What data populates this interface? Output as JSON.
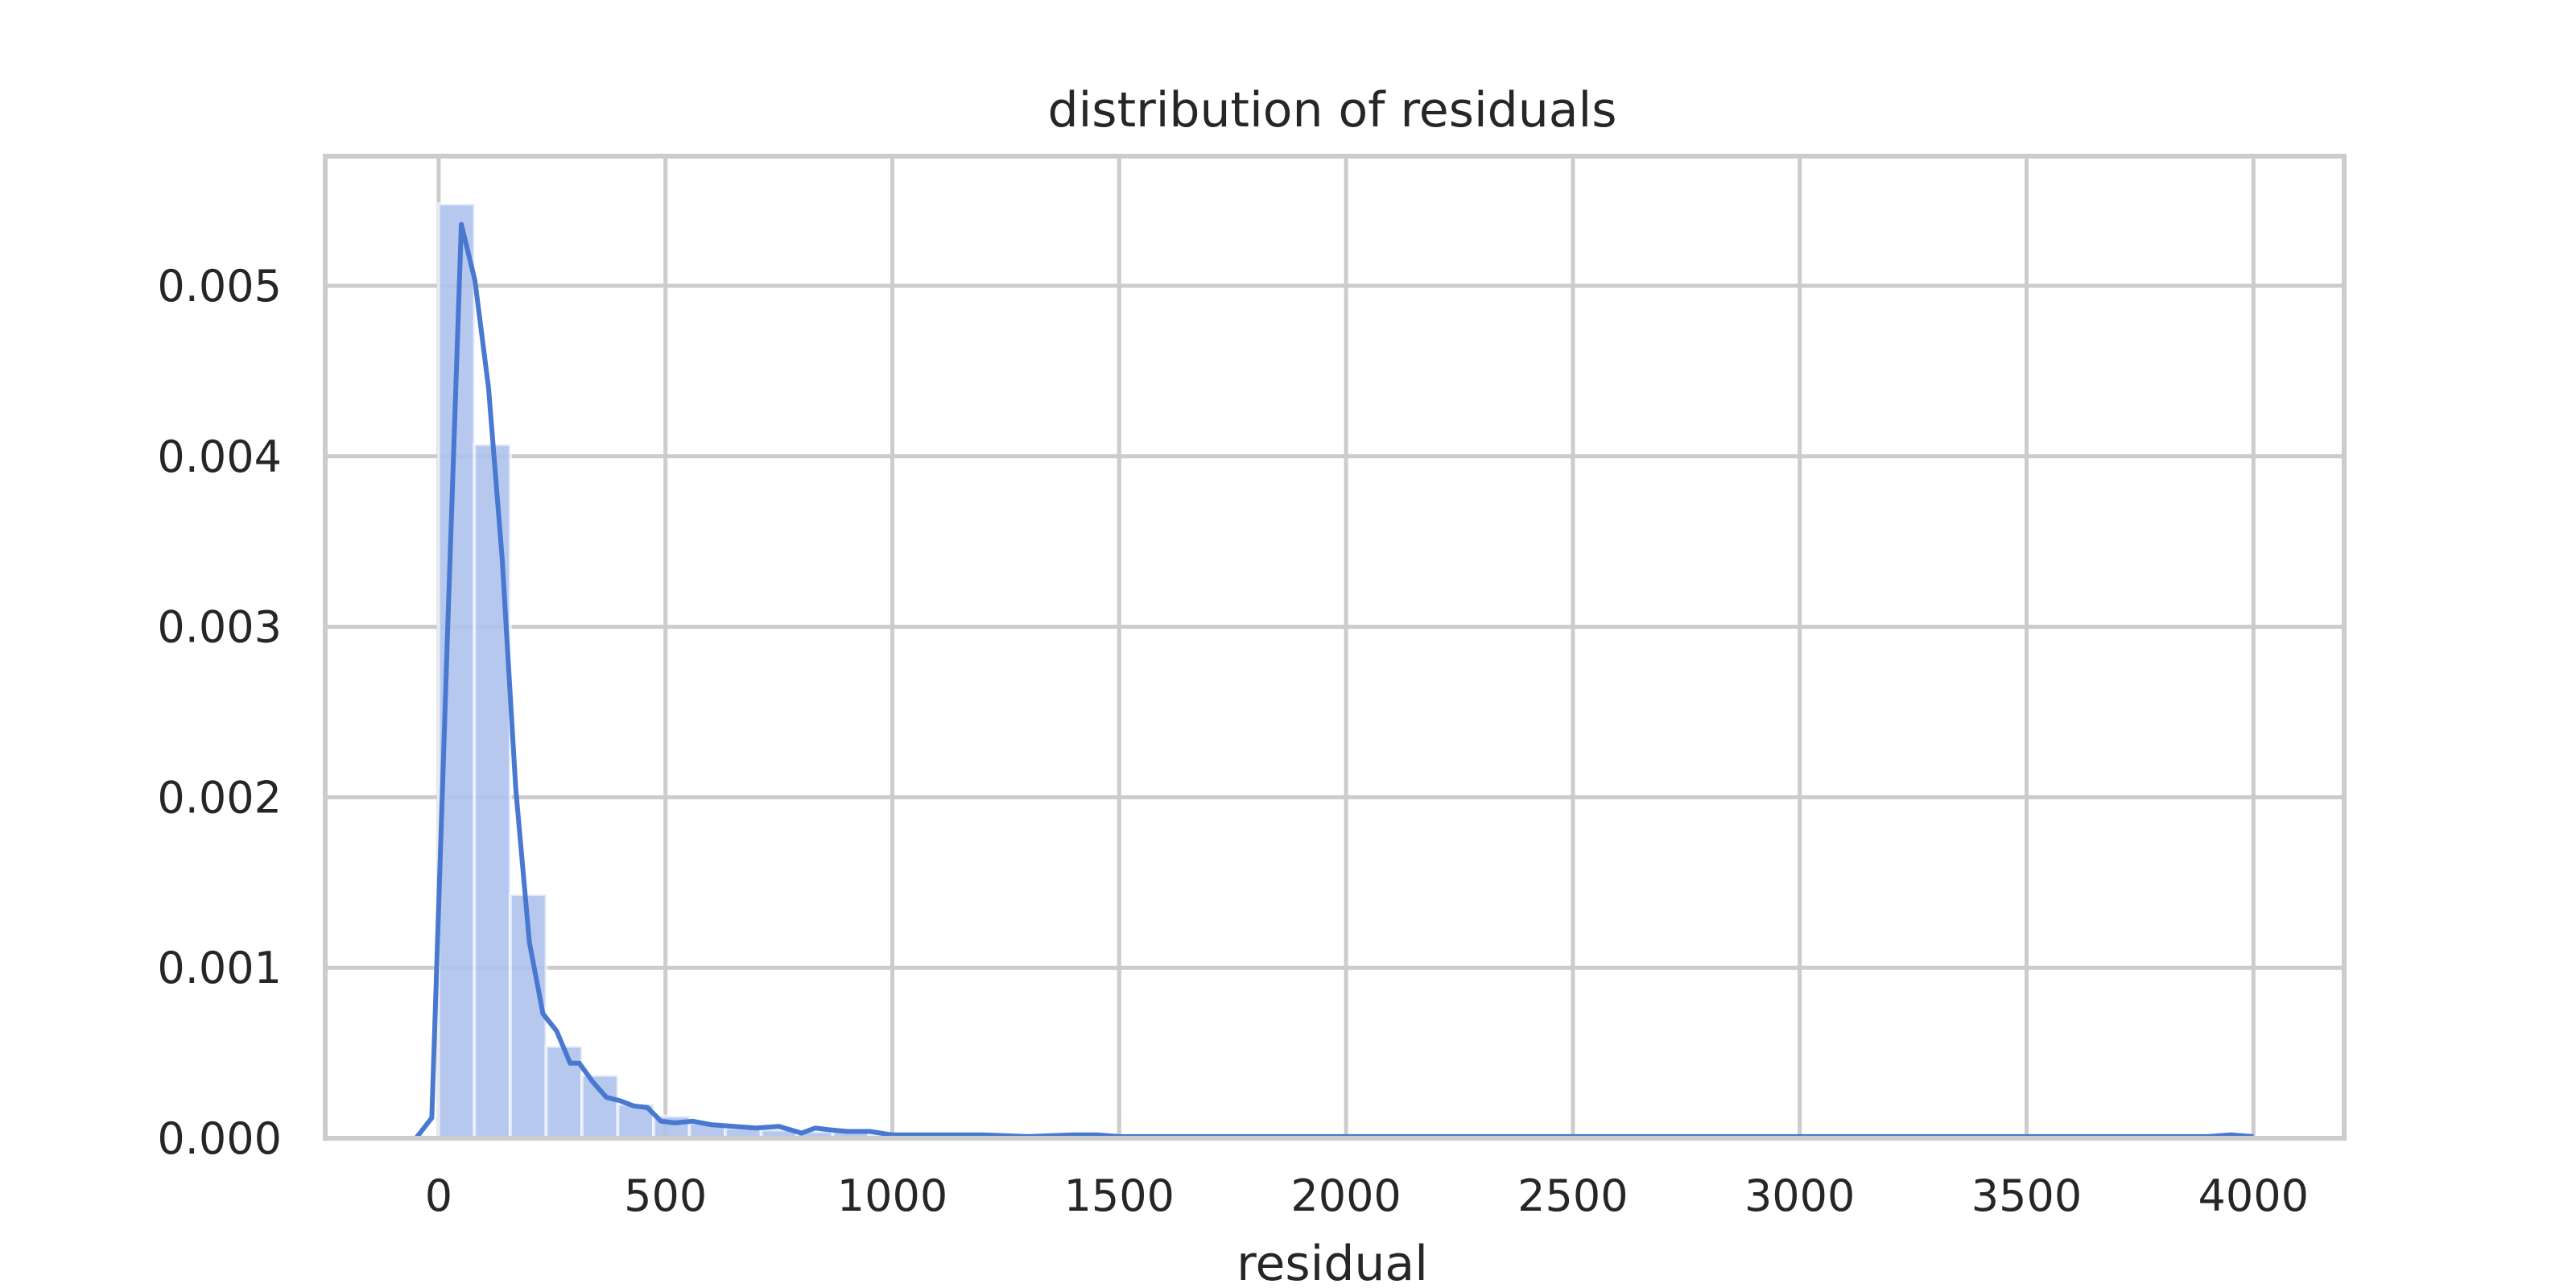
{
  "chart_data": {
    "type": "bar",
    "title": "distribution of residuals",
    "xlabel": "residual",
    "ylabel": "",
    "xlim": [
      -250,
      4200
    ],
    "ylim": [
      0,
      0.00576
    ],
    "xticks": [
      0,
      500,
      1000,
      1500,
      2000,
      2500,
      3000,
      3500,
      4000
    ],
    "yticks": [
      0.0,
      0.001,
      0.002,
      0.003,
      0.004,
      0.005
    ],
    "ytick_labels": [
      "0.000",
      "0.001",
      "0.002",
      "0.003",
      "0.004",
      "0.005"
    ],
    "grid": true,
    "bar_color": "#aec2ec",
    "line_color": "#4878d0",
    "histogram": {
      "bin_width": 79,
      "bins": [
        {
          "x0": 0,
          "x1": 79,
          "value": 0.00548
        },
        {
          "x0": 79,
          "x1": 158,
          "value": 0.00407
        },
        {
          "x0": 158,
          "x1": 237,
          "value": 0.00143
        },
        {
          "x0": 237,
          "x1": 316,
          "value": 0.00054
        },
        {
          "x0": 316,
          "x1": 395,
          "value": 0.00037
        },
        {
          "x0": 395,
          "x1": 474,
          "value": 0.0002
        },
        {
          "x0": 474,
          "x1": 553,
          "value": 0.00013
        },
        {
          "x0": 553,
          "x1": 632,
          "value": 9e-05
        },
        {
          "x0": 632,
          "x1": 711,
          "value": 6e-05
        },
        {
          "x0": 711,
          "x1": 790,
          "value": 5e-05
        },
        {
          "x0": 790,
          "x1": 869,
          "value": 4e-05
        },
        {
          "x0": 869,
          "x1": 948,
          "value": 4e-05
        },
        {
          "x0": 948,
          "x1": 1027,
          "value": 2e-05
        },
        {
          "x0": 1027,
          "x1": 1106,
          "value": 2e-05
        },
        {
          "x0": 1106,
          "x1": 1185,
          "value": 2e-05
        },
        {
          "x0": 1185,
          "x1": 1264,
          "value": 1e-05
        },
        {
          "x0": 1264,
          "x1": 1343,
          "value": 1e-05
        },
        {
          "x0": 1343,
          "x1": 1422,
          "value": 2e-05
        },
        {
          "x0": 1422,
          "x1": 1501,
          "value": 1e-05
        }
      ]
    },
    "kde": {
      "x": [
        -50,
        -15,
        20,
        50,
        80,
        110,
        140,
        170,
        200,
        230,
        260,
        290,
        310,
        340,
        370,
        400,
        430,
        460,
        490,
        520,
        560,
        600,
        650,
        700,
        750,
        800,
        830,
        860,
        900,
        950,
        1000,
        1100,
        1200,
        1300,
        1400,
        1450,
        1500,
        1700,
        2000,
        2500,
        3000,
        3500,
        3900,
        3950,
        4000
      ],
      "y": [
        0.0,
        0.00012,
        0.003,
        0.00536,
        0.00503,
        0.0044,
        0.0034,
        0.00205,
        0.00115,
        0.00073,
        0.00063,
        0.00044,
        0.00044,
        0.00033,
        0.00024,
        0.00022,
        0.00019,
        0.00018,
        0.0001,
        9e-05,
        0.0001,
        8e-05,
        7e-05,
        6e-05,
        7e-05,
        3e-05,
        6e-05,
        5e-05,
        4e-05,
        4e-05,
        2e-05,
        2e-05,
        2e-05,
        1e-05,
        2e-05,
        2e-05,
        1e-05,
        1e-05,
        1e-05,
        1e-05,
        1e-05,
        1e-05,
        1e-05,
        2e-05,
        1e-05
      ]
    }
  }
}
